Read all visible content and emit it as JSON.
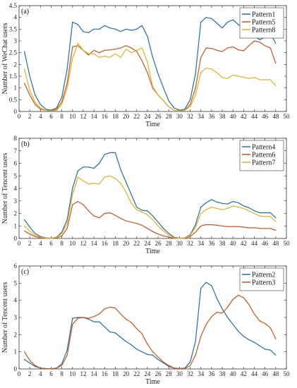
{
  "figure": {
    "xlabel": "Time"
  },
  "chart_data": [
    {
      "type": "line",
      "panel_label": "(a)",
      "ylabel": "Number of WeChat users",
      "xlabel": "Time",
      "xlim": [
        0,
        50
      ],
      "ylim": [
        0,
        4.5
      ],
      "xticks": [
        0,
        2,
        4,
        6,
        8,
        10,
        12,
        14,
        16,
        18,
        20,
        22,
        24,
        26,
        28,
        30,
        32,
        34,
        36,
        38,
        40,
        42,
        44,
        46,
        48,
        50
      ],
      "yticks": [
        0,
        0.5,
        1,
        1.5,
        2,
        2.5,
        3,
        3.5,
        4,
        4.5
      ],
      "ytick_labels": [
        "0",
        "0.5",
        "1",
        "1.5",
        "2",
        "2.5",
        "3",
        "3.5",
        "4",
        "4.5"
      ],
      "legend_position": "top-right",
      "grid": false,
      "x": [
        1,
        2,
        3,
        4,
        5,
        6,
        7,
        8,
        9,
        10,
        11,
        12,
        13,
        14,
        15,
        16,
        17,
        18,
        19,
        20,
        21,
        22,
        23,
        24,
        25,
        26,
        27,
        28,
        29,
        30,
        31,
        32,
        33,
        34,
        35,
        36,
        37,
        38,
        39,
        40,
        41,
        42,
        43,
        44,
        45,
        46,
        47,
        48
      ],
      "series": [
        {
          "name": "Pattern1",
          "color": "#1f6fa8",
          "values": [
            2.55,
            1.5,
            0.7,
            0.3,
            0.1,
            0.05,
            0.15,
            0.6,
            1.8,
            3.8,
            3.7,
            3.4,
            3.35,
            3.5,
            3.5,
            3.65,
            3.55,
            3.5,
            3.4,
            3.5,
            3.45,
            3.5,
            3.65,
            3.2,
            2.3,
            1.6,
            1.0,
            0.45,
            0.15,
            0.05,
            0.1,
            0.5,
            1.6,
            3.8,
            4.0,
            3.95,
            3.75,
            3.55,
            3.8,
            3.9,
            3.7,
            3.5,
            3.3,
            3.2,
            3.05,
            3.15,
            3.3,
            2.9
          ]
        },
        {
          "name": "Pattern5",
          "color": "#c8541f",
          "values": [
            1.2,
            0.7,
            0.3,
            0.1,
            0.05,
            0.02,
            0.1,
            0.4,
            1.2,
            2.75,
            2.8,
            2.6,
            2.4,
            2.6,
            2.5,
            2.6,
            2.62,
            2.65,
            2.7,
            2.8,
            2.7,
            2.55,
            2.15,
            1.65,
            1.0,
            0.7,
            0.45,
            0.2,
            0.05,
            0.02,
            0.05,
            0.3,
            1.0,
            2.3,
            2.7,
            2.68,
            2.6,
            2.55,
            2.7,
            2.75,
            2.62,
            2.58,
            2.8,
            3.0,
            2.95,
            2.8,
            2.7,
            2.05
          ]
        },
        {
          "name": "Pattern8",
          "color": "#e3b021",
          "values": [
            1.8,
            0.9,
            0.4,
            0.15,
            0.05,
            0.02,
            0.05,
            0.3,
            1.0,
            2.25,
            2.9,
            2.6,
            2.45,
            2.45,
            2.3,
            2.35,
            2.3,
            2.45,
            2.3,
            2.65,
            2.5,
            2.6,
            2.7,
            2.1,
            1.05,
            0.7,
            0.45,
            0.2,
            0.05,
            0.02,
            0.05,
            0.2,
            0.7,
            1.65,
            1.85,
            1.8,
            1.65,
            1.45,
            1.4,
            1.55,
            1.5,
            1.45,
            1.4,
            1.45,
            1.35,
            1.35,
            1.35,
            1.1
          ]
        }
      ]
    },
    {
      "type": "line",
      "panel_label": "(b)",
      "ylabel": "Number of Tencent users",
      "xlabel": "Time",
      "xlim": [
        0,
        50
      ],
      "ylim": [
        0,
        8
      ],
      "xticks": [
        0,
        2,
        4,
        6,
        8,
        10,
        12,
        14,
        16,
        18,
        20,
        22,
        24,
        26,
        28,
        30,
        32,
        34,
        36,
        38,
        40,
        42,
        44,
        46,
        48,
        50
      ],
      "yticks": [
        0,
        1,
        2,
        3,
        4,
        5,
        6,
        7,
        8
      ],
      "ytick_labels": [
        "0",
        "1",
        "2",
        "3",
        "4",
        "5",
        "6",
        "7",
        "8"
      ],
      "legend_position": "top-right",
      "grid": false,
      "x": [
        1,
        2,
        3,
        4,
        5,
        6,
        7,
        8,
        9,
        10,
        11,
        12,
        13,
        14,
        15,
        16,
        17,
        18,
        19,
        20,
        21,
        22,
        23,
        24,
        25,
        26,
        27,
        28,
        29,
        30,
        31,
        32,
        33,
        34,
        35,
        36,
        37,
        38,
        39,
        40,
        41,
        42,
        43,
        44,
        45,
        46,
        47,
        48
      ],
      "series": [
        {
          "name": "Pattern4",
          "color": "#1f6fa8",
          "values": [
            1.5,
            0.9,
            0.4,
            0.15,
            0.05,
            0.02,
            0.1,
            0.5,
            1.5,
            4.0,
            5.4,
            5.7,
            5.7,
            5.6,
            6.0,
            6.7,
            6.85,
            6.85,
            5.5,
            4.5,
            3.5,
            2.5,
            2.25,
            2.2,
            1.8,
            1.3,
            0.8,
            0.4,
            0.1,
            0.02,
            0.05,
            0.3,
            1.1,
            2.5,
            2.85,
            3.1,
            2.9,
            2.8,
            2.75,
            2.95,
            2.85,
            2.6,
            2.45,
            2.2,
            2.05,
            2.05,
            2.05,
            1.65
          ]
        },
        {
          "name": "Pattern6",
          "color": "#c8541f",
          "values": [
            0.6,
            0.35,
            0.15,
            0.05,
            0.02,
            0.01,
            0.05,
            0.2,
            0.8,
            2.7,
            2.95,
            2.7,
            2.2,
            1.8,
            1.65,
            2.0,
            2.05,
            1.85,
            1.6,
            1.4,
            1.3,
            1.2,
            1.05,
            0.8,
            0.55,
            0.35,
            0.2,
            0.1,
            0.02,
            0.01,
            0.02,
            0.15,
            0.5,
            1.0,
            1.1,
            1.1,
            1.05,
            1.0,
            0.95,
            0.95,
            0.95,
            0.9,
            0.85,
            0.85,
            0.8,
            0.8,
            0.8,
            0.65
          ]
        },
        {
          "name": "Pattern7",
          "color": "#e3b021",
          "values": [
            1.0,
            0.6,
            0.25,
            0.1,
            0.03,
            0.02,
            0.08,
            0.4,
            1.2,
            3.5,
            4.9,
            4.6,
            4.35,
            4.4,
            4.35,
            4.9,
            5.0,
            4.8,
            4.4,
            3.7,
            2.8,
            2.3,
            2.1,
            1.9,
            1.5,
            1.0,
            0.6,
            0.25,
            0.05,
            0.02,
            0.04,
            0.25,
            0.9,
            2.0,
            2.3,
            2.5,
            2.4,
            2.3,
            2.4,
            2.6,
            2.5,
            2.4,
            2.2,
            2.0,
            1.8,
            1.75,
            1.75,
            1.35
          ]
        }
      ]
    },
    {
      "type": "line",
      "panel_label": "(c)",
      "ylabel": "Number of Tencent users",
      "xlabel": "Time",
      "xlim": [
        0,
        50
      ],
      "ylim": [
        0,
        6
      ],
      "xticks": [
        0,
        2,
        4,
        6,
        8,
        10,
        12,
        14,
        16,
        18,
        20,
        22,
        24,
        26,
        28,
        30,
        32,
        34,
        36,
        38,
        40,
        42,
        44,
        46,
        48,
        50
      ],
      "yticks": [
        0,
        1,
        2,
        3,
        4,
        5,
        6
      ],
      "ytick_labels": [
        "0",
        "1",
        "2",
        "3",
        "4",
        "5",
        "6"
      ],
      "legend_position": "top-right",
      "grid": false,
      "x": [
        1,
        2,
        3,
        4,
        5,
        6,
        7,
        8,
        9,
        10,
        11,
        12,
        13,
        14,
        15,
        16,
        17,
        18,
        19,
        20,
        21,
        22,
        23,
        24,
        25,
        26,
        27,
        28,
        29,
        30,
        31,
        32,
        33,
        34,
        35,
        36,
        37,
        38,
        39,
        40,
        41,
        42,
        43,
        44,
        45,
        46,
        47,
        48
      ],
      "series": [
        {
          "name": "Pattern2",
          "color": "#1f6fa8",
          "values": [
            0.55,
            0.35,
            0.15,
            0.05,
            0.02,
            0.01,
            0.05,
            0.3,
            1.1,
            2.95,
            3.0,
            3.0,
            2.9,
            2.75,
            2.75,
            2.45,
            2.15,
            2.1,
            1.85,
            1.6,
            1.4,
            1.15,
            1.0,
            0.85,
            0.8,
            0.55,
            0.35,
            0.15,
            0.05,
            0.02,
            0.05,
            0.4,
            1.6,
            4.7,
            5.05,
            4.85,
            4.1,
            3.5,
            3.0,
            2.6,
            2.2,
            1.9,
            1.7,
            1.55,
            1.35,
            1.15,
            1.1,
            0.8
          ]
        },
        {
          "name": "Pattern3",
          "color": "#c8541f",
          "values": [
            1.0,
            0.5,
            0.2,
            0.05,
            0.02,
            0.01,
            0.05,
            0.2,
            0.8,
            2.6,
            2.95,
            3.0,
            2.95,
            3.05,
            3.2,
            3.5,
            3.6,
            3.55,
            3.2,
            2.9,
            2.7,
            2.35,
            2.05,
            1.45,
            1.0,
            0.7,
            0.4,
            0.2,
            0.05,
            0.02,
            0.02,
            0.2,
            0.8,
            1.9,
            2.6,
            3.05,
            3.3,
            3.25,
            3.6,
            4.05,
            4.3,
            4.15,
            3.75,
            3.2,
            2.8,
            2.65,
            2.4,
            1.75
          ]
        }
      ]
    }
  ]
}
